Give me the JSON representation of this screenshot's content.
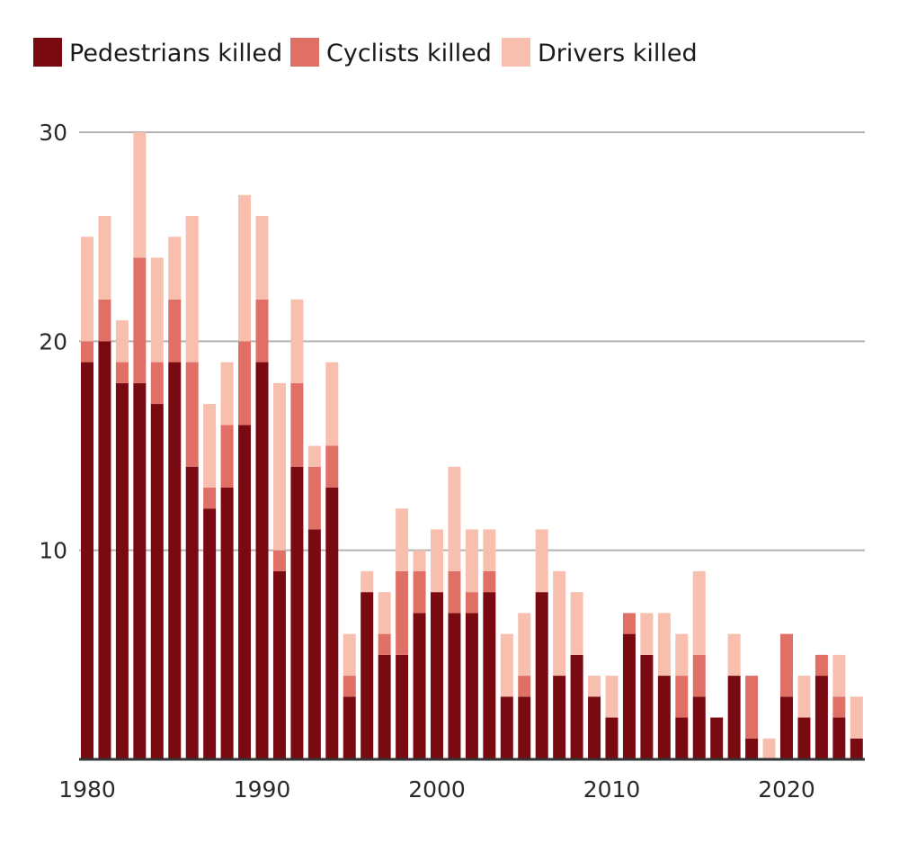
{
  "chart_data": {
    "type": "bar",
    "stacked": true,
    "title": "",
    "xlabel": "",
    "ylabel": "",
    "ylim": [
      0,
      30
    ],
    "yticks": [
      10,
      20,
      30
    ],
    "xticks": [
      1980,
      1990,
      2000,
      2010,
      2020
    ],
    "grid": true,
    "legend_position": "top-left",
    "x": [
      1980,
      1981,
      1982,
      1983,
      1984,
      1985,
      1986,
      1987,
      1988,
      1989,
      1990,
      1991,
      1992,
      1993,
      1994,
      1995,
      1996,
      1997,
      1998,
      1999,
      2000,
      2001,
      2002,
      2003,
      2004,
      2005,
      2006,
      2007,
      2008,
      2009,
      2010,
      2011,
      2012,
      2013,
      2014,
      2015,
      2016,
      2017,
      2018,
      2019,
      2020,
      2021,
      2022,
      2023,
      2024
    ],
    "series": [
      {
        "name": "Pedestrians killed",
        "color": "#7a0a12",
        "values": [
          19,
          20,
          18,
          18,
          17,
          19,
          14,
          12,
          13,
          16,
          19,
          9,
          14,
          11,
          13,
          3,
          8,
          5,
          5,
          7,
          8,
          7,
          7,
          8,
          3,
          3,
          8,
          4,
          5,
          3,
          2,
          6,
          5,
          4,
          2,
          3,
          2,
          4,
          1,
          0,
          3,
          2,
          4,
          2,
          1
        ]
      },
      {
        "name": "Cyclists killed",
        "color": "#e07066",
        "values": [
          1,
          2,
          1,
          6,
          2,
          3,
          5,
          1,
          3,
          4,
          3,
          1,
          4,
          3,
          2,
          1,
          0,
          1,
          4,
          2,
          0,
          2,
          1,
          1,
          0,
          1,
          0,
          0,
          0,
          0,
          0,
          1,
          0,
          0,
          2,
          2,
          0,
          0,
          3,
          0,
          3,
          0,
          1,
          1,
          0
        ]
      },
      {
        "name": "Drivers killed",
        "color": "#f8bfaf",
        "values": [
          5,
          4,
          2,
          6,
          5,
          3,
          7,
          4,
          3,
          7,
          4,
          8,
          4,
          1,
          4,
          2,
          1,
          2,
          3,
          1,
          3,
          5,
          3,
          2,
          3,
          3,
          3,
          5,
          3,
          1,
          2,
          0,
          2,
          3,
          2,
          4,
          0,
          2,
          0,
          1,
          0,
          2,
          0,
          2,
          2
        ]
      }
    ]
  }
}
